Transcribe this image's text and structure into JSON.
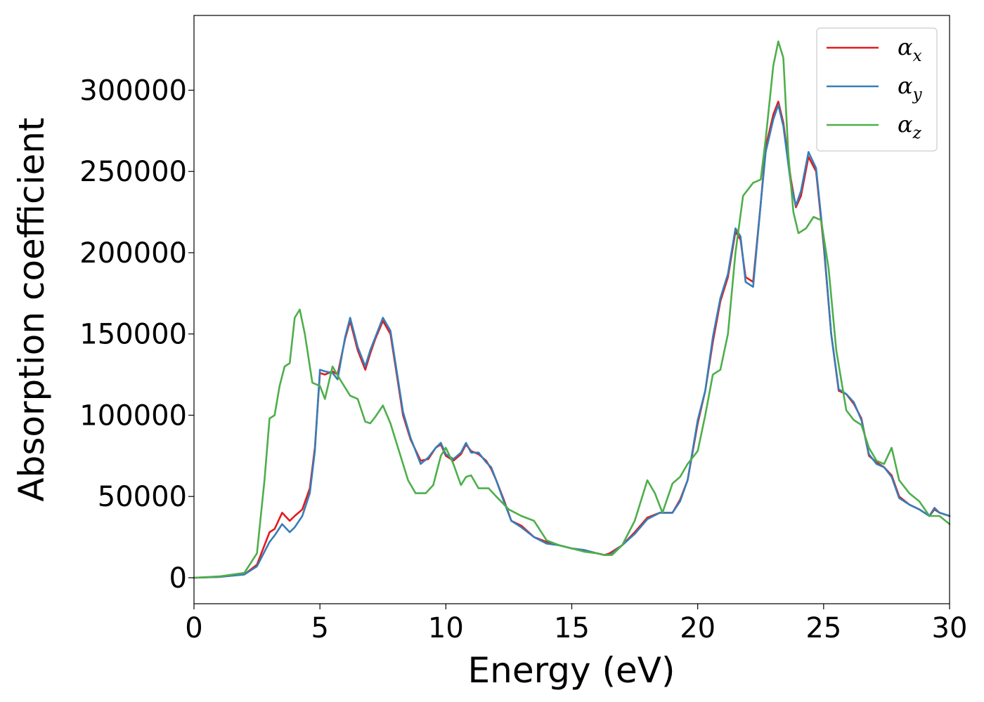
{
  "chart_data": {
    "type": "line",
    "xlabel": "Energy (eV)",
    "ylabel": "Absorption coefficient",
    "xlim": [
      0,
      30
    ],
    "ylim": [
      -16000,
      346000
    ],
    "xticks": [
      0,
      5,
      10,
      15,
      20,
      25,
      30
    ],
    "yticks": [
      0,
      50000,
      100000,
      150000,
      200000,
      250000,
      300000
    ],
    "grid": false,
    "legend_position": "top-right",
    "series": [
      {
        "name": "αx",
        "legend_main": "α",
        "legend_sub": "x",
        "color": "#e41a1c",
        "x": [
          0,
          1,
          2,
          2.5,
          2.8,
          3.0,
          3.2,
          3.5,
          3.8,
          4.0,
          4.3,
          4.6,
          4.8,
          5.0,
          5.2,
          5.5,
          5.7,
          6.0,
          6.2,
          6.5,
          6.8,
          7.0,
          7.2,
          7.5,
          7.8,
          8.0,
          8.3,
          8.6,
          9.0,
          9.3,
          9.6,
          9.8,
          10.0,
          10.3,
          10.6,
          10.8,
          11.0,
          11.3,
          11.6,
          11.8,
          12.0,
          12.3,
          12.6,
          13.0,
          13.5,
          14.0,
          14.5,
          15.0,
          15.5,
          16.0,
          16.3,
          16.5,
          17.0,
          17.5,
          18.0,
          18.5,
          19.0,
          19.3,
          19.6,
          20.0,
          20.3,
          20.6,
          20.9,
          21.2,
          21.5,
          21.7,
          21.9,
          22.2,
          22.5,
          22.7,
          23.0,
          23.2,
          23.4,
          23.7,
          23.9,
          24.1,
          24.4,
          24.7,
          25.0,
          25.3,
          25.6,
          25.9,
          26.2,
          26.5,
          26.8,
          27.1,
          27.4,
          27.7,
          28.0,
          28.4,
          28.8,
          29.2,
          29.4,
          29.6,
          30.0
        ],
        "y": [
          0,
          500,
          2000,
          8000,
          20000,
          28000,
          30000,
          40000,
          35000,
          38000,
          42000,
          55000,
          80000,
          126000,
          125000,
          127000,
          125000,
          147000,
          158000,
          140000,
          128000,
          138000,
          147000,
          158000,
          150000,
          130000,
          100000,
          85000,
          72000,
          73000,
          80000,
          82000,
          75000,
          72000,
          76000,
          82000,
          78000,
          76000,
          72000,
          67000,
          60000,
          48000,
          35000,
          32000,
          25000,
          22000,
          20000,
          18000,
          17000,
          15000,
          14000,
          15000,
          20000,
          28000,
          37000,
          40000,
          40000,
          48000,
          60000,
          95000,
          115000,
          145000,
          170000,
          185000,
          213000,
          208000,
          185000,
          182000,
          230000,
          265000,
          285000,
          293000,
          280000,
          245000,
          228000,
          235000,
          259000,
          250000,
          205000,
          150000,
          115000,
          113000,
          107000,
          98000,
          75000,
          71000,
          68000,
          63000,
          50000,
          45000,
          42000,
          38000,
          42000,
          40000,
          38000
        ]
      },
      {
        "name": "αy",
        "legend_main": "α",
        "legend_sub": "y",
        "color": "#377eb8",
        "x": [
          0,
          1,
          2,
          2.5,
          2.8,
          3.0,
          3.2,
          3.5,
          3.8,
          4.0,
          4.3,
          4.6,
          4.8,
          5.0,
          5.2,
          5.5,
          5.7,
          6.0,
          6.2,
          6.5,
          6.8,
          7.0,
          7.2,
          7.5,
          7.8,
          8.0,
          8.3,
          8.6,
          9.0,
          9.3,
          9.6,
          9.8,
          10.0,
          10.3,
          10.6,
          10.8,
          11.0,
          11.3,
          11.6,
          11.8,
          12.0,
          12.3,
          12.6,
          13.0,
          13.5,
          14.0,
          14.5,
          15.0,
          15.5,
          16.0,
          16.3,
          16.5,
          17.0,
          17.5,
          18.0,
          18.5,
          19.0,
          19.3,
          19.6,
          20.0,
          20.3,
          20.6,
          20.9,
          21.2,
          21.5,
          21.7,
          21.9,
          22.2,
          22.5,
          22.7,
          23.0,
          23.2,
          23.4,
          23.7,
          23.9,
          24.1,
          24.4,
          24.7,
          25.0,
          25.3,
          25.6,
          25.9,
          26.2,
          26.5,
          26.8,
          27.1,
          27.4,
          27.7,
          28.0,
          28.4,
          28.8,
          29.2,
          29.4,
          29.6,
          30.0
        ],
        "y": [
          0,
          500,
          2000,
          7000,
          16000,
          22000,
          26000,
          33000,
          28000,
          31000,
          38000,
          52000,
          78000,
          128000,
          127000,
          126000,
          122000,
          148000,
          160000,
          142000,
          130000,
          140000,
          148000,
          160000,
          152000,
          132000,
          102000,
          86000,
          70000,
          74000,
          80000,
          83000,
          76000,
          73000,
          77000,
          83000,
          77000,
          77000,
          71000,
          68000,
          60000,
          47000,
          35000,
          31000,
          25000,
          21000,
          20000,
          18000,
          17000,
          15000,
          14000,
          14000,
          20000,
          27000,
          36000,
          40000,
          40000,
          47000,
          60000,
          97000,
          115000,
          148000,
          172000,
          187000,
          215000,
          210000,
          182000,
          179000,
          230000,
          262000,
          282000,
          291000,
          278000,
          242000,
          229000,
          238000,
          262000,
          252000,
          207000,
          150000,
          116000,
          113000,
          108000,
          97000,
          76000,
          70000,
          68000,
          62000,
          49000,
          45000,
          42000,
          38000,
          43000,
          40000,
          38000
        ]
      },
      {
        "name": "αz",
        "legend_main": "α",
        "legend_sub": "z",
        "color": "#4daf4a",
        "x": [
          0,
          1,
          2,
          2.5,
          2.8,
          3.0,
          3.2,
          3.4,
          3.6,
          3.8,
          4.0,
          4.2,
          4.4,
          4.7,
          5.0,
          5.2,
          5.5,
          5.8,
          6.2,
          6.5,
          6.8,
          7.0,
          7.2,
          7.5,
          7.8,
          8.2,
          8.5,
          8.8,
          9.2,
          9.5,
          9.8,
          10.0,
          10.3,
          10.6,
          10.8,
          11.0,
          11.3,
          11.7,
          12.0,
          12.5,
          13.0,
          13.5,
          14.0,
          14.5,
          15.0,
          15.5,
          16.0,
          16.3,
          16.6,
          17.0,
          17.5,
          18.0,
          18.3,
          18.6,
          19.0,
          19.3,
          19.6,
          20.0,
          20.3,
          20.6,
          20.9,
          21.2,
          21.5,
          21.8,
          22.2,
          22.5,
          22.7,
          23.0,
          23.2,
          23.4,
          23.6,
          23.8,
          24.0,
          24.3,
          24.6,
          24.9,
          25.2,
          25.5,
          25.9,
          26.2,
          26.5,
          26.8,
          27.1,
          27.4,
          27.7,
          28.0,
          28.4,
          28.8,
          29.2,
          29.6,
          30.0
        ],
        "y": [
          0,
          800,
          3000,
          15000,
          60000,
          98000,
          100000,
          118000,
          130000,
          132000,
          160000,
          165000,
          150000,
          120000,
          118000,
          110000,
          130000,
          122000,
          112000,
          110000,
          96000,
          95000,
          99000,
          106000,
          95000,
          75000,
          60000,
          52000,
          52000,
          57000,
          75000,
          80000,
          70000,
          57000,
          62000,
          63000,
          55000,
          55000,
          50000,
          42000,
          38000,
          35000,
          23000,
          20000,
          18000,
          16000,
          15000,
          14000,
          14000,
          20000,
          35000,
          60000,
          52000,
          40000,
          58000,
          62000,
          70000,
          78000,
          100000,
          125000,
          128000,
          150000,
          200000,
          235000,
          243000,
          245000,
          270000,
          315000,
          330000,
          320000,
          260000,
          225000,
          212000,
          215000,
          222000,
          220000,
          190000,
          140000,
          103000,
          97000,
          94000,
          80000,
          72000,
          70000,
          80000,
          60000,
          52000,
          47000,
          38000,
          38000,
          33000
        ]
      }
    ]
  }
}
